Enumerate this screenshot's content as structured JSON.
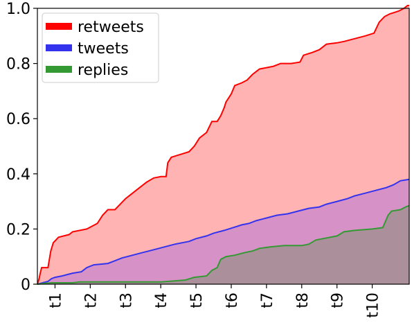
{
  "chart_data": {
    "type": "area",
    "title": "",
    "xlabel": "",
    "ylabel": "",
    "ylim": [
      0,
      1.0
    ],
    "yticks": [
      "0",
      "0.2",
      "0.4",
      "0.6",
      "0.8",
      "1.0"
    ],
    "ytick_values": [
      0,
      0.2,
      0.4,
      0.6,
      0.8,
      1.0
    ],
    "xlim": [
      0,
      10.55
    ],
    "xticks": [
      "t1",
      "t2",
      "t3",
      "t4",
      "t5",
      "t6",
      "t7",
      "t8",
      "t9",
      "t10"
    ],
    "xtick_values": [
      0.5,
      1.5,
      2.5,
      3.5,
      4.5,
      5.5,
      6.5,
      7.5,
      8.5,
      9.5
    ],
    "legend_position": "top-left",
    "grid": false,
    "series": [
      {
        "name": "retweets",
        "color": "#ff0000",
        "fill": "#ffb3b3",
        "points": [
          [
            0,
            0
          ],
          [
            0.05,
            0.02
          ],
          [
            0.08,
            0.04
          ],
          [
            0.12,
            0.06
          ],
          [
            0.3,
            0.06
          ],
          [
            0.38,
            0.12
          ],
          [
            0.45,
            0.15
          ],
          [
            0.6,
            0.17
          ],
          [
            0.9,
            0.18
          ],
          [
            1.0,
            0.19
          ],
          [
            1.4,
            0.2
          ],
          [
            1.7,
            0.22
          ],
          [
            1.85,
            0.25
          ],
          [
            2.0,
            0.27
          ],
          [
            2.2,
            0.27
          ],
          [
            2.35,
            0.29
          ],
          [
            2.5,
            0.31
          ],
          [
            2.7,
            0.33
          ],
          [
            2.9,
            0.35
          ],
          [
            3.1,
            0.37
          ],
          [
            3.3,
            0.385
          ],
          [
            3.5,
            0.39
          ],
          [
            3.65,
            0.39
          ],
          [
            3.7,
            0.44
          ],
          [
            3.8,
            0.46
          ],
          [
            4.05,
            0.47
          ],
          [
            4.3,
            0.48
          ],
          [
            4.45,
            0.5
          ],
          [
            4.6,
            0.53
          ],
          [
            4.8,
            0.55
          ],
          [
            4.95,
            0.59
          ],
          [
            5.1,
            0.59
          ],
          [
            5.2,
            0.61
          ],
          [
            5.3,
            0.64
          ],
          [
            5.35,
            0.66
          ],
          [
            5.5,
            0.69
          ],
          [
            5.6,
            0.72
          ],
          [
            5.8,
            0.73
          ],
          [
            5.95,
            0.74
          ],
          [
            6.1,
            0.76
          ],
          [
            6.3,
            0.78
          ],
          [
            6.5,
            0.785
          ],
          [
            6.7,
            0.79
          ],
          [
            6.9,
            0.8
          ],
          [
            7.2,
            0.8
          ],
          [
            7.45,
            0.805
          ],
          [
            7.55,
            0.83
          ],
          [
            7.8,
            0.84
          ],
          [
            8.0,
            0.85
          ],
          [
            8.2,
            0.87
          ],
          [
            8.5,
            0.875
          ],
          [
            8.7,
            0.88
          ],
          [
            9.0,
            0.89
          ],
          [
            9.3,
            0.9
          ],
          [
            9.55,
            0.91
          ],
          [
            9.7,
            0.95
          ],
          [
            9.85,
            0.97
          ],
          [
            10.0,
            0.98
          ],
          [
            10.25,
            0.99
          ],
          [
            10.4,
            1.0
          ],
          [
            10.5,
            1.01
          ],
          [
            10.55,
            1.01
          ]
        ]
      },
      {
        "name": "tweets",
        "color": "#3333ee",
        "fill": "#cc88cc",
        "points": [
          [
            0,
            0
          ],
          [
            0.15,
            0.005
          ],
          [
            0.3,
            0.01
          ],
          [
            0.4,
            0.02
          ],
          [
            0.5,
            0.025
          ],
          [
            0.7,
            0.03
          ],
          [
            1.0,
            0.04
          ],
          [
            1.25,
            0.045
          ],
          [
            1.4,
            0.06
          ],
          [
            1.6,
            0.07
          ],
          [
            2.0,
            0.075
          ],
          [
            2.2,
            0.085
          ],
          [
            2.4,
            0.095
          ],
          [
            2.7,
            0.105
          ],
          [
            3.0,
            0.115
          ],
          [
            3.3,
            0.125
          ],
          [
            3.6,
            0.135
          ],
          [
            3.9,
            0.145
          ],
          [
            4.3,
            0.155
          ],
          [
            4.5,
            0.165
          ],
          [
            4.8,
            0.175
          ],
          [
            5.0,
            0.185
          ],
          [
            5.3,
            0.195
          ],
          [
            5.55,
            0.205
          ],
          [
            5.8,
            0.215
          ],
          [
            6.0,
            0.22
          ],
          [
            6.2,
            0.23
          ],
          [
            6.5,
            0.24
          ],
          [
            6.8,
            0.25
          ],
          [
            7.1,
            0.255
          ],
          [
            7.4,
            0.265
          ],
          [
            7.7,
            0.275
          ],
          [
            8.0,
            0.28
          ],
          [
            8.2,
            0.29
          ],
          [
            8.5,
            0.3
          ],
          [
            8.8,
            0.31
          ],
          [
            9.0,
            0.32
          ],
          [
            9.3,
            0.33
          ],
          [
            9.6,
            0.34
          ],
          [
            9.9,
            0.35
          ],
          [
            10.1,
            0.36
          ],
          [
            10.3,
            0.375
          ],
          [
            10.55,
            0.38
          ]
        ]
      },
      {
        "name": "replies",
        "color": "#339933",
        "fill": "#a09090",
        "points": [
          [
            0,
            0
          ],
          [
            0.4,
            0.005
          ],
          [
            1.0,
            0.005
          ],
          [
            1.2,
            0.008
          ],
          [
            3.5,
            0.008
          ],
          [
            3.9,
            0.012
          ],
          [
            4.2,
            0.015
          ],
          [
            4.45,
            0.025
          ],
          [
            4.8,
            0.03
          ],
          [
            4.95,
            0.05
          ],
          [
            5.1,
            0.06
          ],
          [
            5.2,
            0.09
          ],
          [
            5.35,
            0.1
          ],
          [
            5.6,
            0.105
          ],
          [
            5.9,
            0.115
          ],
          [
            6.1,
            0.12
          ],
          [
            6.3,
            0.13
          ],
          [
            6.6,
            0.135
          ],
          [
            7.0,
            0.14
          ],
          [
            7.5,
            0.14
          ],
          [
            7.7,
            0.145
          ],
          [
            7.9,
            0.16
          ],
          [
            8.1,
            0.165
          ],
          [
            8.5,
            0.175
          ],
          [
            8.7,
            0.19
          ],
          [
            9.0,
            0.195
          ],
          [
            9.5,
            0.2
          ],
          [
            9.8,
            0.205
          ],
          [
            9.95,
            0.25
          ],
          [
            10.05,
            0.265
          ],
          [
            10.3,
            0.27
          ],
          [
            10.45,
            0.28
          ],
          [
            10.55,
            0.285
          ]
        ]
      }
    ]
  }
}
